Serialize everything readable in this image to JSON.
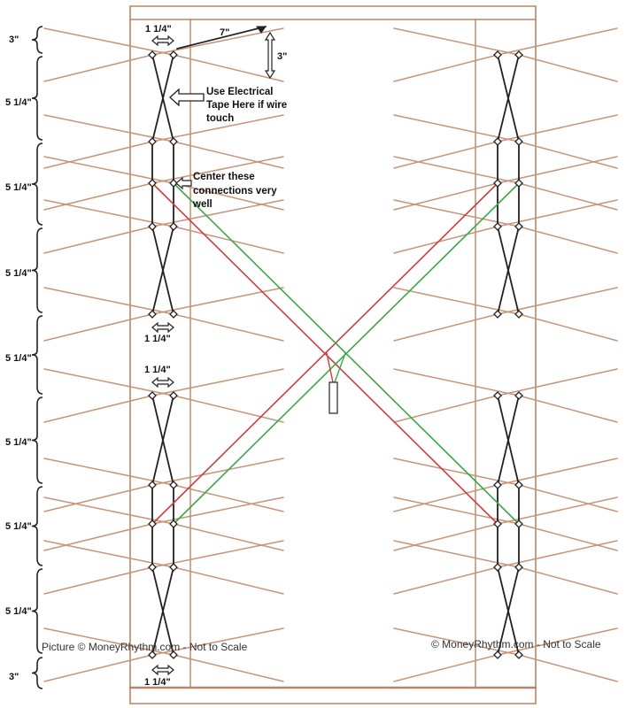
{
  "dimensions": {
    "top_end_3": "3\"",
    "bottom_end_3": "3\"",
    "segment_label": "5 1/4\"",
    "spacing_top": "1 1/4\"",
    "spacing_mid_lower": "1 1/4\"",
    "spacing_mid_upper": "1 1/4\"",
    "spacing_bottom": "1 1/4\"",
    "whisker_length": "7\"",
    "whisker_drop": "3\""
  },
  "notes": {
    "electrical_tape_line1": "Use Electrical",
    "electrical_tape_line2": "Tape Here if wire",
    "electrical_tape_line3": "touch",
    "center_connections_line1": "Center these",
    "center_connections_line2": "connections very",
    "center_connections_line3": "well"
  },
  "credits": {
    "left": "Picture © MoneyRhythm.com - Not to Scale",
    "right": "© MoneyRhythm.com - Not to Scale"
  },
  "colors": {
    "wood": "#b5876a",
    "whisker": "#c89478",
    "wire": "#222222",
    "harness_red": "#d23c3c",
    "harness_green": "#3aa84a"
  }
}
